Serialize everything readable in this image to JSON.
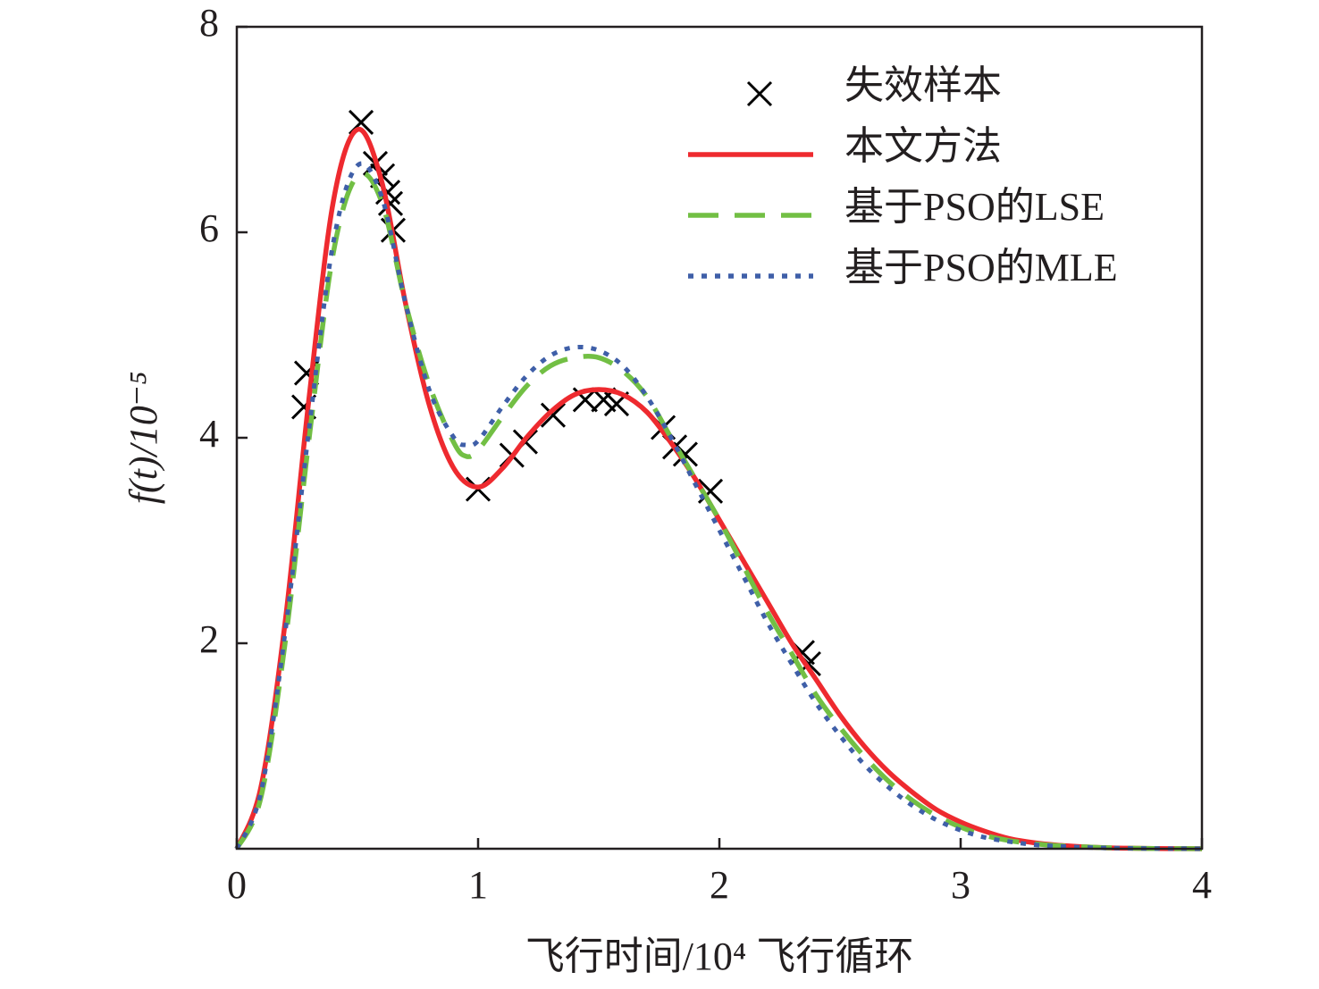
{
  "chart_data": {
    "type": "line",
    "xlabel": "飞行时间/10⁴ 飞行循环",
    "ylabel": "f(t)/10⁻⁵",
    "xlim": [
      0,
      4
    ],
    "ylim": [
      0,
      8
    ],
    "xticks": [
      0,
      1,
      2,
      3,
      4
    ],
    "yticks": [
      2,
      4,
      6,
      8
    ],
    "legend": "upper right",
    "series": [
      {
        "name": "失效样本",
        "color": "#000000",
        "marker": "x",
        "x": [
          0.278,
          0.289,
          0.515,
          0.574,
          0.604,
          0.626,
          0.637,
          0.648,
          1.0,
          1.14,
          1.196,
          1.311,
          1.444,
          1.52,
          1.574,
          1.767,
          1.815,
          1.859,
          1.963,
          2.344,
          2.37
        ],
        "values": [
          4.3,
          4.63,
          7.07,
          6.67,
          6.55,
          6.39,
          6.28,
          6.02,
          3.5,
          3.83,
          3.96,
          4.22,
          4.37,
          4.37,
          4.33,
          4.1,
          3.91,
          3.84,
          3.48,
          1.91,
          1.8
        ]
      },
      {
        "name": "本文方法",
        "color": "#ee2a2f",
        "dash": "solid",
        "x": [
          0,
          0.1,
          0.2,
          0.3,
          0.4,
          0.5,
          0.6,
          0.7,
          0.8,
          0.9,
          1.0,
          1.1,
          1.2,
          1.3,
          1.4,
          1.5,
          1.6,
          1.7,
          1.8,
          1.9,
          2.0,
          2.1,
          2.2,
          2.3,
          2.4,
          2.5,
          2.6,
          2.7,
          2.8,
          2.9,
          3.0,
          3.1,
          3.2,
          3.3,
          3.4,
          3.5,
          3.6,
          3.7,
          3.8,
          3.9,
          4.0
        ],
        "values": [
          0,
          0.6,
          2.2,
          4.4,
          6.3,
          7.0,
          6.5,
          5.3,
          4.3,
          3.7,
          3.52,
          3.7,
          4.0,
          4.25,
          4.42,
          4.47,
          4.42,
          4.25,
          3.95,
          3.6,
          3.2,
          2.8,
          2.4,
          2.0,
          1.65,
          1.3,
          1.0,
          0.75,
          0.55,
          0.38,
          0.26,
          0.17,
          0.1,
          0.06,
          0.035,
          0.02,
          0.01,
          0.005,
          0.002,
          0.001,
          0
        ]
      },
      {
        "name": "基于PSO的LSE",
        "color": "#72bf44",
        "dash": "dashed",
        "x": [
          0,
          0.1,
          0.2,
          0.3,
          0.4,
          0.5,
          0.6,
          0.7,
          0.8,
          0.9,
          0.95,
          1.0,
          1.1,
          1.2,
          1.3,
          1.4,
          1.5,
          1.6,
          1.7,
          1.8,
          1.9,
          2.0,
          2.1,
          2.2,
          2.3,
          2.4,
          2.5,
          2.6,
          2.7,
          2.8,
          2.9,
          3.0,
          3.1,
          3.2,
          3.3,
          3.4,
          3.5,
          3.6,
          3.7,
          3.8,
          3.9,
          4.0
        ],
        "values": [
          0,
          0.5,
          2.0,
          4.0,
          5.8,
          6.55,
          6.3,
          5.3,
          4.5,
          3.95,
          3.82,
          3.88,
          4.2,
          4.5,
          4.7,
          4.78,
          4.78,
          4.65,
          4.4,
          4.0,
          3.6,
          3.2,
          2.75,
          2.3,
          1.9,
          1.5,
          1.18,
          0.9,
          0.66,
          0.47,
          0.32,
          0.21,
          0.13,
          0.08,
          0.05,
          0.03,
          0.02,
          0.01,
          0.005,
          0.002,
          0.001,
          0
        ]
      },
      {
        "name": "基于PSO的MLE",
        "color": "#3f5fa8",
        "dash": "dotted",
        "x": [
          0,
          0.1,
          0.2,
          0.3,
          0.4,
          0.5,
          0.6,
          0.7,
          0.8,
          0.9,
          0.95,
          1.0,
          1.1,
          1.2,
          1.3,
          1.4,
          1.5,
          1.6,
          1.7,
          1.8,
          1.9,
          2.0,
          2.1,
          2.2,
          2.3,
          2.4,
          2.5,
          2.6,
          2.7,
          2.8,
          2.9,
          3.0,
          3.1,
          3.2,
          3.3,
          3.4,
          3.5,
          3.6,
          3.7,
          3.8,
          3.9,
          4.0
        ],
        "values": [
          0,
          0.55,
          2.1,
          4.1,
          5.9,
          6.65,
          6.35,
          5.3,
          4.45,
          4.0,
          3.93,
          3.97,
          4.3,
          4.6,
          4.8,
          4.88,
          4.85,
          4.7,
          4.4,
          4.0,
          3.55,
          3.1,
          2.65,
          2.2,
          1.8,
          1.42,
          1.1,
          0.82,
          0.6,
          0.42,
          0.28,
          0.18,
          0.11,
          0.07,
          0.04,
          0.025,
          0.015,
          0.008,
          0.004,
          0.002,
          0.001,
          0
        ]
      }
    ]
  }
}
